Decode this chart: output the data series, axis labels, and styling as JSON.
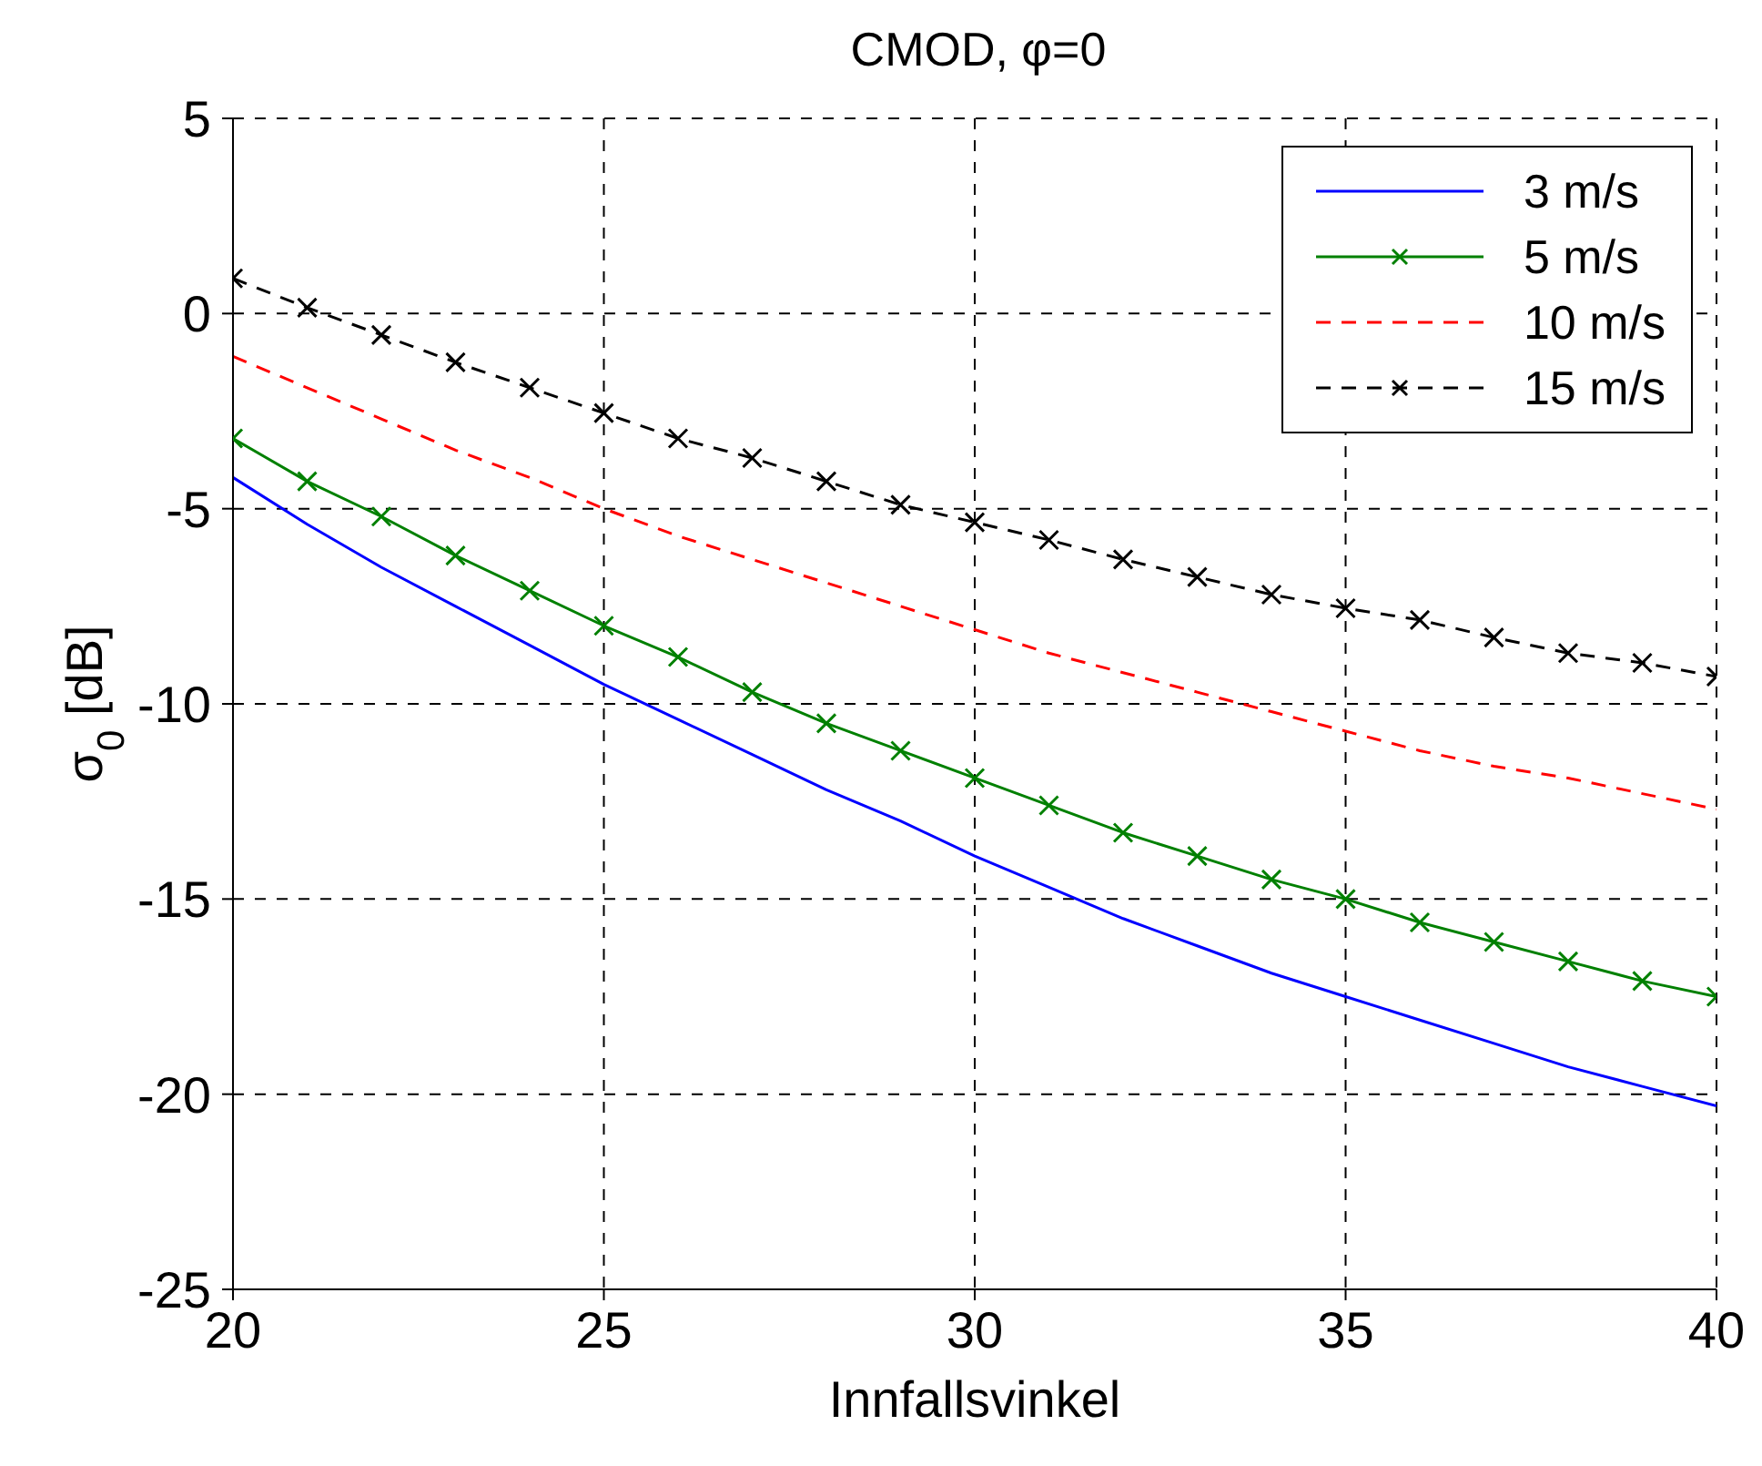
{
  "chart_data": {
    "type": "line",
    "title": "CMOD, φ=0",
    "xlabel": "Innfallsvinkel",
    "ylabel": "σ$_{0}$ [dB]",
    "x": [
      20,
      21,
      22,
      23,
      24,
      25,
      26,
      27,
      28,
      29,
      30,
      31,
      32,
      33,
      34,
      35,
      36,
      37,
      38,
      39,
      40
    ],
    "series": [
      {
        "name": "3 m/s",
        "color": "#0000ff",
        "line_style": "solid",
        "marker": "none",
        "values": [
          -4.2,
          -5.4,
          -6.5,
          -7.5,
          -8.5,
          -9.5,
          -10.4,
          -11.3,
          -12.2,
          -13.0,
          -13.9,
          -14.7,
          -15.5,
          -16.2,
          -16.9,
          -17.5,
          -18.1,
          -18.7,
          -19.3,
          -19.8,
          -20.3
        ]
      },
      {
        "name": "5 m/s",
        "color": "#008000",
        "line_style": "solid",
        "marker": "cross",
        "values": [
          -3.2,
          -4.3,
          -5.2,
          -6.2,
          -7.1,
          -8.0,
          -8.8,
          -9.7,
          -10.5,
          -11.2,
          -11.9,
          -12.6,
          -13.3,
          -13.9,
          -14.5,
          -15.0,
          -15.6,
          -16.1,
          -16.6,
          -17.1,
          -17.5
        ]
      },
      {
        "name": "10 m/s",
        "color": "#ff0000",
        "line_style": "dashed",
        "marker": "none",
        "values": [
          -1.1,
          -1.9,
          -2.7,
          -3.5,
          -4.2,
          -5.0,
          -5.7,
          -6.3,
          -6.9,
          -7.5,
          -8.1,
          -8.7,
          -9.2,
          -9.7,
          -10.2,
          -10.7,
          -11.2,
          -11.6,
          -11.9,
          -12.3,
          -12.7
        ]
      },
      {
        "name": "15 m/s",
        "color": "#000000",
        "line_style": "dashed",
        "marker": "cross",
        "values": [
          0.9,
          0.15,
          -0.55,
          -1.25,
          -1.9,
          -2.55,
          -3.2,
          -3.7,
          -4.3,
          -4.9,
          -5.35,
          -5.8,
          -6.3,
          -6.75,
          -7.2,
          -7.55,
          -7.85,
          -8.3,
          -8.7,
          -8.95,
          -9.3
        ]
      }
    ],
    "xlim": [
      20,
      40
    ],
    "xticks": [
      20,
      25,
      30,
      35,
      40
    ],
    "ylim": [
      -25,
      5
    ],
    "yticks": [
      -25,
      -20,
      -15,
      -10,
      -5,
      0,
      5
    ],
    "grid": true,
    "legend": "top right"
  }
}
